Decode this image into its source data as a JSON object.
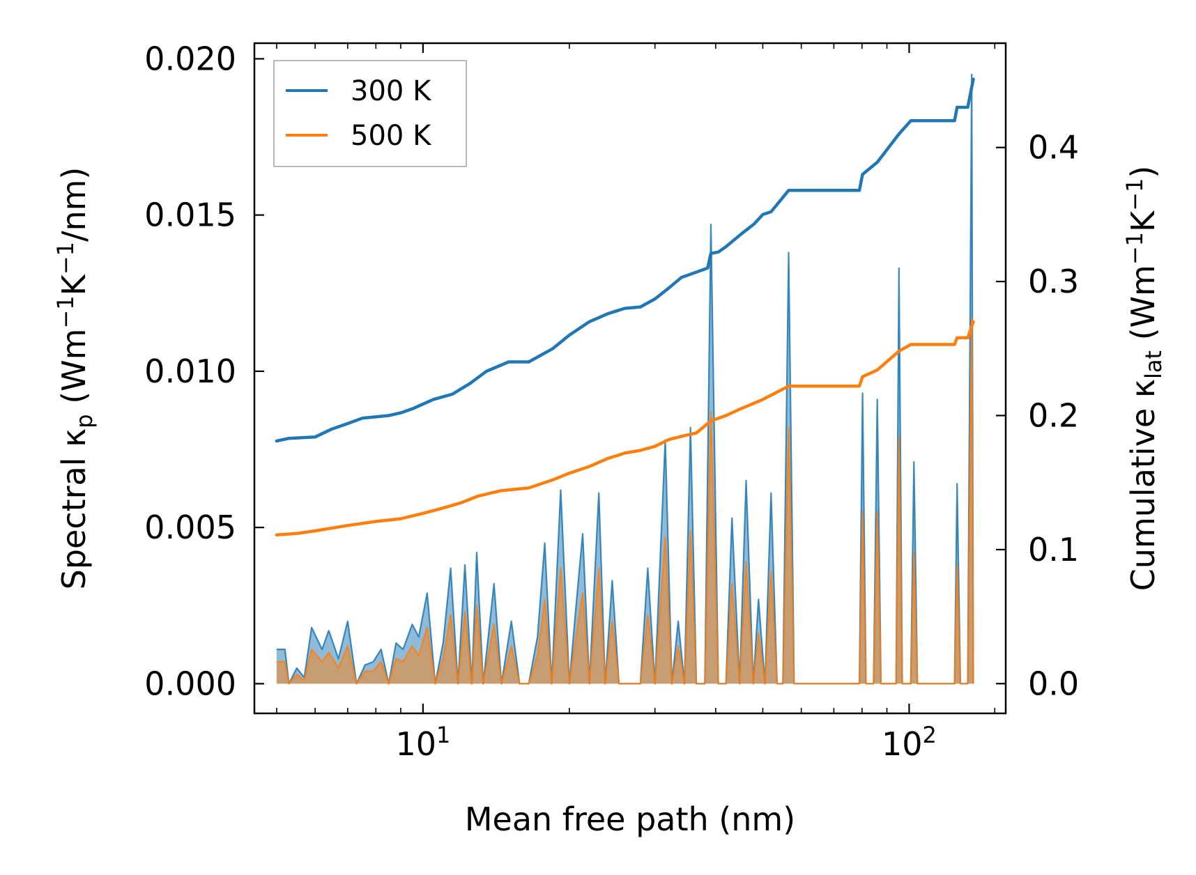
{
  "chart_data": {
    "type": "line",
    "xscale": "log",
    "xlabel": "Mean free path (nm)",
    "xlim": [
      4.5,
      158
    ],
    "xticks": [
      {
        "value": 10,
        "base": "10",
        "exp": "1"
      },
      {
        "value": 100,
        "base": "10",
        "exp": "2"
      }
    ],
    "y_left": {
      "label_parts": [
        "Spectral κ",
        "p",
        " (Wm",
        "−1",
        "K",
        "−1",
        "/nm)"
      ],
      "ylim": [
        -0.00095,
        0.0205
      ],
      "ticks": [
        0.0,
        0.005,
        0.01,
        0.015,
        0.02
      ],
      "tick_labels": [
        "0.000",
        "0.005",
        "0.010",
        "0.015",
        "0.020"
      ]
    },
    "y_right": {
      "label_parts": [
        "Cumulative κ",
        "lat",
        " (Wm",
        "−1",
        "K",
        "−1",
        ")"
      ],
      "ylim": [
        -0.0222,
        0.4778
      ],
      "ticks": [
        0.0,
        0.1,
        0.2,
        0.3,
        0.4
      ],
      "tick_labels": [
        "0.0",
        "0.1",
        "0.2",
        "0.3",
        "0.4"
      ]
    },
    "legend": {
      "position": "upper-left",
      "entries": [
        {
          "name": "300 K",
          "color": "#1f77b4"
        },
        {
          "name": "500 K",
          "color": "#ff7f0e"
        }
      ]
    },
    "spectral_series": [
      {
        "name": "300 K",
        "color": "#1f77b4",
        "points": [
          [
            5.0,
            0.0011
          ],
          [
            5.2,
            0.0011
          ],
          [
            5.3,
            0.0
          ],
          [
            5.5,
            0.0005
          ],
          [
            5.7,
            0.0002
          ],
          [
            5.9,
            0.0018
          ],
          [
            6.2,
            0.0011
          ],
          [
            6.4,
            0.0017
          ],
          [
            6.7,
            0.0008
          ],
          [
            7.0,
            0.002
          ],
          [
            7.3,
            0.0
          ],
          [
            7.6,
            0.0006
          ],
          [
            7.9,
            0.0007
          ],
          [
            8.2,
            0.0011
          ],
          [
            8.5,
            0.0
          ],
          [
            8.8,
            0.0013
          ],
          [
            9.1,
            0.0011
          ],
          [
            9.5,
            0.0019
          ],
          [
            9.8,
            0.0015
          ],
          [
            10.2,
            0.0029
          ],
          [
            10.6,
            0.0
          ],
          [
            11.0,
            0.0013
          ],
          [
            11.4,
            0.0037
          ],
          [
            11.8,
            0.0
          ],
          [
            12.2,
            0.0038
          ],
          [
            12.6,
            0.0
          ],
          [
            12.9,
            0.0042
          ],
          [
            13.3,
            0.0
          ],
          [
            14.0,
            0.0032
          ],
          [
            14.5,
            0.0
          ],
          [
            15.2,
            0.002
          ],
          [
            15.8,
            0.0
          ],
          [
            16.5,
            0.0
          ],
          [
            17.2,
            0.0015
          ],
          [
            17.8,
            0.0045
          ],
          [
            18.4,
            0.0
          ],
          [
            19.2,
            0.0062
          ],
          [
            20.0,
            0.0
          ],
          [
            20.6,
            0.0023
          ],
          [
            21.3,
            0.0048
          ],
          [
            22.0,
            0.0
          ],
          [
            23.0,
            0.0061
          ],
          [
            23.7,
            0.0
          ],
          [
            24.5,
            0.0033
          ],
          [
            25.3,
            0.0
          ],
          [
            26.2,
            0.0
          ],
          [
            27.0,
            0.0
          ],
          [
            28.0,
            0.0
          ],
          [
            29.0,
            0.0037
          ],
          [
            30.0,
            0.0
          ],
          [
            31.5,
            0.0078
          ],
          [
            32.5,
            0.0
          ],
          [
            33.5,
            0.002
          ],
          [
            34.5,
            0.0
          ],
          [
            35.5,
            0.0082
          ],
          [
            36.5,
            0.0
          ],
          [
            38.0,
            0.0
          ],
          [
            39.1,
            0.0147
          ],
          [
            40.5,
            0.0
          ],
          [
            42.0,
            0.0
          ],
          [
            43.2,
            0.0053
          ],
          [
            44.8,
            0.0
          ],
          [
            46.2,
            0.0065
          ],
          [
            47.8,
            0.0
          ],
          [
            49.0,
            0.0027
          ],
          [
            50.5,
            0.0
          ],
          [
            52.0,
            0.0061
          ],
          [
            53.5,
            0.0
          ],
          [
            55.0,
            0.0
          ],
          [
            56.5,
            0.0138
          ],
          [
            58.0,
            0.0
          ],
          [
            66.0,
            0.0
          ],
          [
            79.0,
            0.0
          ],
          [
            80.2,
            0.0093
          ],
          [
            81.5,
            0.0
          ],
          [
            84.5,
            0.0
          ],
          [
            86.0,
            0.0091
          ],
          [
            87.5,
            0.0
          ],
          [
            89.0,
            0.0
          ],
          [
            94.0,
            0.0
          ],
          [
            95.3,
            0.0133
          ],
          [
            96.8,
            0.0
          ],
          [
            100.8,
            0.0
          ],
          [
            102.3,
            0.0071
          ],
          [
            104.0,
            0.0
          ],
          [
            124.0,
            0.0
          ],
          [
            125.5,
            0.0064
          ],
          [
            127.5,
            0.0
          ],
          [
            132.0,
            0.0
          ],
          [
            134.5,
            0.0195
          ],
          [
            135.5,
            0.0
          ]
        ]
      },
      {
        "name": "500 K",
        "color": "#ff7f0e",
        "points": [
          [
            5.0,
            0.0007
          ],
          [
            5.2,
            0.0007
          ],
          [
            5.3,
            0.0
          ],
          [
            5.5,
            0.0003
          ],
          [
            5.7,
            0.0001
          ],
          [
            5.9,
            0.0011
          ],
          [
            6.2,
            0.0007
          ],
          [
            6.4,
            0.001
          ],
          [
            6.7,
            0.0005
          ],
          [
            7.0,
            0.0012
          ],
          [
            7.3,
            0.0
          ],
          [
            7.6,
            0.0004
          ],
          [
            7.9,
            0.0004
          ],
          [
            8.2,
            0.0007
          ],
          [
            8.5,
            0.0
          ],
          [
            8.8,
            0.0008
          ],
          [
            9.1,
            0.0007
          ],
          [
            9.5,
            0.0012
          ],
          [
            9.8,
            0.0009
          ],
          [
            10.2,
            0.0018
          ],
          [
            10.6,
            0.0
          ],
          [
            11.0,
            0.0008
          ],
          [
            11.4,
            0.0022
          ],
          [
            11.8,
            0.0
          ],
          [
            12.2,
            0.0023
          ],
          [
            12.6,
            0.0
          ],
          [
            12.9,
            0.0025
          ],
          [
            13.3,
            0.0
          ],
          [
            14.0,
            0.0019
          ],
          [
            14.5,
            0.0
          ],
          [
            15.2,
            0.0012
          ],
          [
            15.8,
            0.0
          ],
          [
            16.5,
            0.0
          ],
          [
            17.2,
            0.0009
          ],
          [
            17.8,
            0.0027
          ],
          [
            18.4,
            0.0
          ],
          [
            19.2,
            0.0037
          ],
          [
            20.0,
            0.0
          ],
          [
            20.6,
            0.0014
          ],
          [
            21.3,
            0.0029
          ],
          [
            22.0,
            0.0
          ],
          [
            23.0,
            0.0037
          ],
          [
            23.7,
            0.0
          ],
          [
            24.5,
            0.002
          ],
          [
            25.3,
            0.0
          ],
          [
            26.2,
            0.0
          ],
          [
            27.0,
            0.0
          ],
          [
            28.0,
            0.0
          ],
          [
            29.0,
            0.0022
          ],
          [
            30.0,
            0.0
          ],
          [
            31.5,
            0.0047
          ],
          [
            32.5,
            0.0
          ],
          [
            33.5,
            0.0012
          ],
          [
            34.5,
            0.0
          ],
          [
            35.5,
            0.0049
          ],
          [
            36.5,
            0.0
          ],
          [
            38.0,
            0.0
          ],
          [
            39.1,
            0.0087
          ],
          [
            40.5,
            0.0
          ],
          [
            42.0,
            0.0
          ],
          [
            43.2,
            0.0032
          ],
          [
            44.8,
            0.0
          ],
          [
            46.2,
            0.0039
          ],
          [
            47.8,
            0.0
          ],
          [
            49.0,
            0.0016
          ],
          [
            50.5,
            0.0
          ],
          [
            52.0,
            0.0036
          ],
          [
            53.5,
            0.0
          ],
          [
            55.0,
            0.0
          ],
          [
            56.5,
            0.0082
          ],
          [
            58.0,
            0.0
          ],
          [
            66.0,
            0.0
          ],
          [
            79.0,
            0.0
          ],
          [
            80.2,
            0.0055
          ],
          [
            81.5,
            0.0
          ],
          [
            84.5,
            0.0
          ],
          [
            86.0,
            0.0055
          ],
          [
            87.5,
            0.0
          ],
          [
            89.0,
            0.0
          ],
          [
            94.0,
            0.0
          ],
          [
            95.3,
            0.0079
          ],
          [
            96.8,
            0.0
          ],
          [
            100.8,
            0.0
          ],
          [
            102.3,
            0.0042
          ],
          [
            104.0,
            0.0
          ],
          [
            124.0,
            0.0
          ],
          [
            125.5,
            0.0038
          ],
          [
            127.5,
            0.0
          ],
          [
            132.0,
            0.0
          ],
          [
            134.5,
            0.0117
          ],
          [
            135.5,
            0.0
          ]
        ]
      }
    ],
    "cumulative_series": [
      {
        "name": "300 K",
        "color": "#1f77b4",
        "points": [
          [
            5.0,
            0.181
          ],
          [
            5.3,
            0.183
          ],
          [
            6.0,
            0.184
          ],
          [
            6.5,
            0.19
          ],
          [
            7.0,
            0.194
          ],
          [
            7.5,
            0.198
          ],
          [
            8.5,
            0.2
          ],
          [
            9.0,
            0.202
          ],
          [
            9.5,
            0.205
          ],
          [
            10.5,
            0.212
          ],
          [
            11.5,
            0.216
          ],
          [
            12.5,
            0.224
          ],
          [
            13.5,
            0.233
          ],
          [
            15.0,
            0.24
          ],
          [
            16.5,
            0.24
          ],
          [
            18.5,
            0.25
          ],
          [
            20.0,
            0.26
          ],
          [
            22.0,
            0.27
          ],
          [
            24.0,
            0.276
          ],
          [
            26.0,
            0.28
          ],
          [
            28.0,
            0.281
          ],
          [
            30.0,
            0.287
          ],
          [
            32.0,
            0.295
          ],
          [
            34.0,
            0.303
          ],
          [
            36.5,
            0.307
          ],
          [
            38.5,
            0.31
          ],
          [
            39.1,
            0.321
          ],
          [
            40.5,
            0.322
          ],
          [
            42.0,
            0.326
          ],
          [
            45.0,
            0.335
          ],
          [
            48.0,
            0.343
          ],
          [
            50.0,
            0.35
          ],
          [
            52.0,
            0.352
          ],
          [
            56.5,
            0.368
          ],
          [
            66.0,
            0.368
          ],
          [
            79.0,
            0.368
          ],
          [
            80.2,
            0.38
          ],
          [
            86.0,
            0.389
          ],
          [
            95.3,
            0.41
          ],
          [
            100.8,
            0.42
          ],
          [
            124.0,
            0.42
          ],
          [
            125.5,
            0.43
          ],
          [
            132.0,
            0.43
          ],
          [
            135.5,
            0.451
          ]
        ]
      },
      {
        "name": "500 K",
        "color": "#ff7f0e",
        "points": [
          [
            5.0,
            0.111
          ],
          [
            5.5,
            0.112
          ],
          [
            6.0,
            0.114
          ],
          [
            7.0,
            0.118
          ],
          [
            8.0,
            0.121
          ],
          [
            9.0,
            0.123
          ],
          [
            10.0,
            0.127
          ],
          [
            11.0,
            0.131
          ],
          [
            12.0,
            0.135
          ],
          [
            13.0,
            0.14
          ],
          [
            14.5,
            0.144
          ],
          [
            16.5,
            0.146
          ],
          [
            18.5,
            0.152
          ],
          [
            20.0,
            0.157
          ],
          [
            22.0,
            0.162
          ],
          [
            24.0,
            0.168
          ],
          [
            26.0,
            0.172
          ],
          [
            28.0,
            0.174
          ],
          [
            30.0,
            0.177
          ],
          [
            32.0,
            0.182
          ],
          [
            34.5,
            0.185
          ],
          [
            36.5,
            0.187
          ],
          [
            39.1,
            0.196
          ],
          [
            42.0,
            0.2
          ],
          [
            45.0,
            0.205
          ],
          [
            50.0,
            0.212
          ],
          [
            56.5,
            0.222
          ],
          [
            66.0,
            0.222
          ],
          [
            79.0,
            0.222
          ],
          [
            80.2,
            0.229
          ],
          [
            86.0,
            0.234
          ],
          [
            95.3,
            0.248
          ],
          [
            100.8,
            0.253
          ],
          [
            124.0,
            0.253
          ],
          [
            125.5,
            0.258
          ],
          [
            132.0,
            0.258
          ],
          [
            135.5,
            0.27
          ]
        ]
      }
    ]
  }
}
